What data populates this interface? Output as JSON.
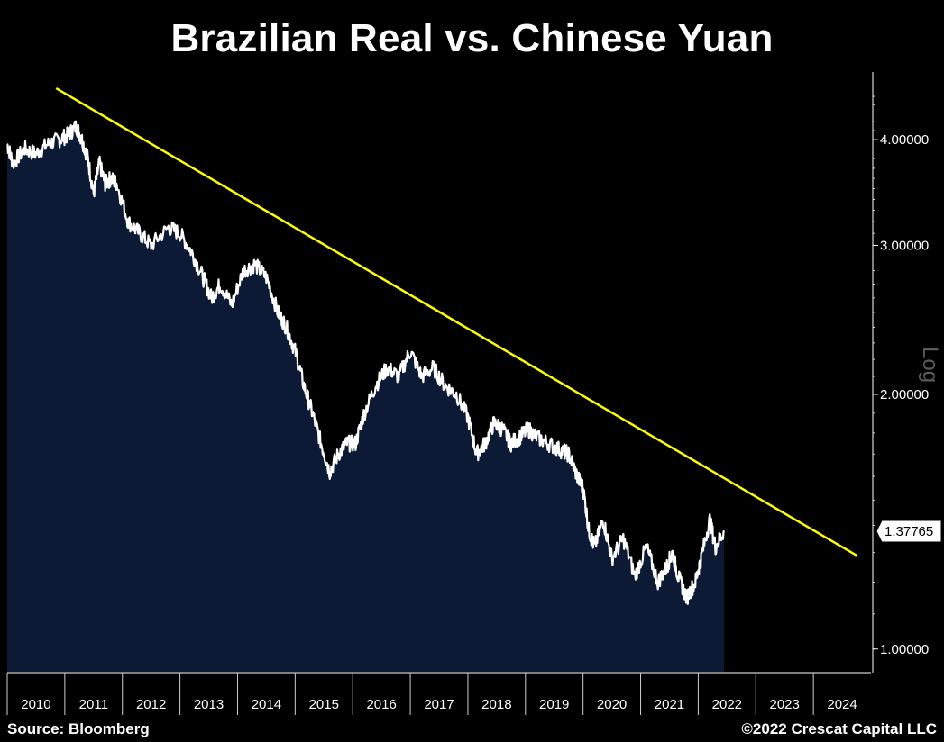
{
  "title": "Brazilian Real vs. Chinese Yuan",
  "source": "Source: Bloomberg",
  "copyright": "©2022 Crescat Capital LLC",
  "chart_data": {
    "type": "area",
    "title": "Brazilian Real vs. Chinese Yuan",
    "xlabel": "",
    "ylabel": "Log",
    "y_scale": "log",
    "ylim": [
      0.94,
      4.75
    ],
    "xlim": [
      2010.0,
      2025.0
    ],
    "x_ticks": [
      "2010",
      "2011",
      "2012",
      "2013",
      "2014",
      "2015",
      "2016",
      "2017",
      "2018",
      "2019",
      "2020",
      "2021",
      "2022",
      "2023",
      "2024"
    ],
    "y_ticks": [
      {
        "value": 1.0,
        "label": "1.00000"
      },
      {
        "value": 2.0,
        "label": "2.00000"
      },
      {
        "value": 3.0,
        "label": "3.00000"
      },
      {
        "value": 4.0,
        "label": "4.00000"
      }
    ],
    "last_value": {
      "value": 1.37765,
      "label": "1.37765"
    },
    "colors": {
      "area": "#0c1a36",
      "line": "#ffffff",
      "trendline": "#ffff00",
      "background": "#000000"
    },
    "series": [
      {
        "x": [
          2010.0,
          2010.1,
          2010.3,
          2010.5,
          2010.7,
          2010.9,
          2011.05,
          2011.2,
          2011.3,
          2011.4,
          2011.5,
          2011.6,
          2011.7,
          2011.8,
          2011.9,
          2012.1,
          2012.3,
          2012.5,
          2012.8,
          2013.0,
          2013.2,
          2013.4,
          2013.55,
          2013.7,
          2013.9,
          2014.1,
          2014.3,
          2014.5,
          2014.7,
          2014.85,
          2015.0,
          2015.15,
          2015.3,
          2015.45,
          2015.6,
          2015.75,
          2015.9,
          2016.05,
          2016.2,
          2016.4,
          2016.6,
          2016.8,
          2017.0,
          2017.2,
          2017.4,
          2017.6,
          2017.8,
          2018.0,
          2018.15,
          2018.3,
          2018.45,
          2018.6,
          2018.75,
          2018.9,
          2019.05,
          2019.2,
          2019.4,
          2019.6,
          2019.75,
          2019.9,
          2020.0,
          2020.1,
          2020.2,
          2020.35,
          2020.5,
          2020.7,
          2020.9,
          2021.1,
          2021.3,
          2021.45,
          2021.55,
          2021.65,
          2021.8,
          2021.95,
          2022.05,
          2022.2,
          2022.3,
          2022.45
        ],
        "values": [
          3.95,
          3.75,
          3.9,
          3.85,
          3.95,
          4.0,
          4.05,
          4.15,
          4.0,
          3.8,
          3.45,
          3.75,
          3.55,
          3.6,
          3.55,
          3.2,
          3.1,
          3.0,
          3.15,
          3.1,
          2.95,
          2.75,
          2.6,
          2.7,
          2.55,
          2.8,
          2.85,
          2.75,
          2.5,
          2.4,
          2.25,
          2.05,
          1.9,
          1.75,
          1.62,
          1.7,
          1.75,
          1.75,
          1.9,
          2.05,
          2.15,
          2.1,
          2.25,
          2.1,
          2.15,
          2.05,
          2.0,
          1.88,
          1.7,
          1.75,
          1.85,
          1.82,
          1.75,
          1.78,
          1.82,
          1.78,
          1.75,
          1.72,
          1.7,
          1.6,
          1.55,
          1.38,
          1.32,
          1.42,
          1.28,
          1.35,
          1.22,
          1.32,
          1.2,
          1.25,
          1.3,
          1.22,
          1.15,
          1.2,
          1.28,
          1.42,
          1.32,
          1.38
        ]
      }
    ],
    "trendline": {
      "x": [
        2010.85,
        2024.75
      ],
      "y": [
        4.6,
        1.29
      ]
    }
  }
}
